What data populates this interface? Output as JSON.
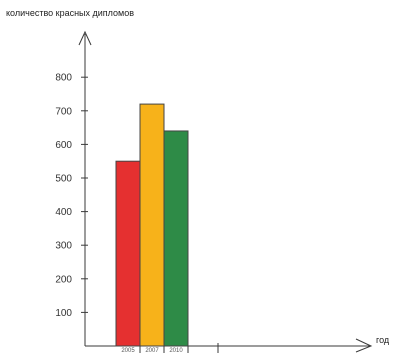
{
  "chart_data": {
    "type": "bar",
    "title": "количество красных дипломов",
    "xlabel": "год",
    "ylabel": "",
    "categories": [
      "2005",
      "2007",
      "2010"
    ],
    "values": [
      550,
      720,
      640
    ],
    "colors": [
      "#e53030",
      "#f7b21a",
      "#2e8b47"
    ],
    "yticks": [
      100,
      200,
      300,
      400,
      500,
      600,
      700,
      800
    ],
    "ylim": [
      0,
      850
    ],
    "grid": false,
    "legend": "none"
  }
}
